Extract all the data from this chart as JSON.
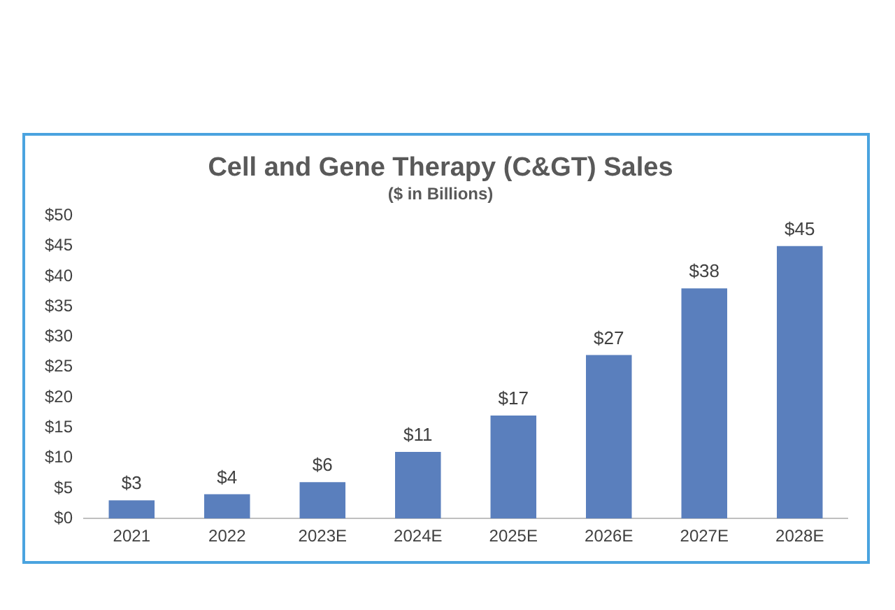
{
  "chart_data": {
    "type": "bar",
    "title": "Cell and Gene Therapy (C&GT) Sales",
    "subtitle": "($ in Billions)",
    "categories": [
      "2021",
      "2022",
      "2023E",
      "2024E",
      "2025E",
      "2026E",
      "2027E",
      "2028E"
    ],
    "values": [
      3,
      4,
      6,
      11,
      17,
      27,
      38,
      45
    ],
    "value_labels": [
      "$3",
      "$4",
      "$6",
      "$11",
      "$17",
      "$27",
      "$38",
      "$45"
    ],
    "color": "#5a7fbd",
    "ylim": [
      0,
      50
    ],
    "yticks": [
      {
        "value": 0,
        "label": "$0"
      },
      {
        "value": 5,
        "label": "$5"
      },
      {
        "value": 10,
        "label": "$10"
      },
      {
        "value": 15,
        "label": "$15"
      },
      {
        "value": 20,
        "label": "$20"
      },
      {
        "value": 25,
        "label": "$25"
      },
      {
        "value": 30,
        "label": "$30"
      },
      {
        "value": 35,
        "label": "$35"
      },
      {
        "value": 40,
        "label": "$40"
      },
      {
        "value": 45,
        "label": "$45"
      },
      {
        "value": 50,
        "label": "$50"
      }
    ],
    "grid": false,
    "legend": false
  }
}
